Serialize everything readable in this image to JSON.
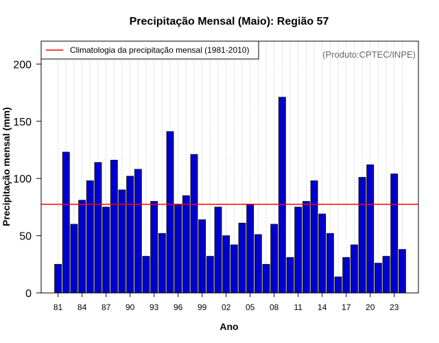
{
  "chart_data": {
    "type": "bar",
    "title": "Precipitação Mensal (Maio): Região 57",
    "xlabel": "Ano",
    "ylabel": "Precipitação mensal (mm)",
    "ylim": [
      0,
      220
    ],
    "yticks": [
      0,
      50,
      100,
      150,
      200
    ],
    "x_tick_labels": [
      "81",
      "84",
      "87",
      "90",
      "93",
      "96",
      "99",
      "02",
      "05",
      "08",
      "11",
      "14",
      "17",
      "20",
      "23"
    ],
    "categories": [
      "1981",
      "1982",
      "1983",
      "1984",
      "1985",
      "1986",
      "1987",
      "1988",
      "1989",
      "1990",
      "1991",
      "1992",
      "1993",
      "1994",
      "1995",
      "1996",
      "1997",
      "1998",
      "1999",
      "2000",
      "2001",
      "2002",
      "2003",
      "2004",
      "2005",
      "2006",
      "2007",
      "2008",
      "2009",
      "2010",
      "2011",
      "2012",
      "2013",
      "2014",
      "2015",
      "2016",
      "2017",
      "2018",
      "2019",
      "2020",
      "2021",
      "2022",
      "2023",
      "2024"
    ],
    "values": [
      25,
      123,
      60,
      81,
      98,
      114,
      75,
      116,
      90,
      102,
      108,
      32,
      80,
      52,
      141,
      77,
      85,
      121,
      64,
      32,
      75,
      50,
      42,
      61,
      77,
      51,
      25,
      60,
      171,
      31,
      75,
      80,
      98,
      69,
      52,
      14,
      31,
      42,
      101,
      112,
      26,
      32,
      104,
      38
    ],
    "bar_color": "#0000CD",
    "grid": true,
    "legend": {
      "position": "top-left",
      "entries": [
        {
          "label": "Climatologia da precipitação mensal (1981-2010)",
          "color": "#FF0000"
        }
      ]
    },
    "climatology_value": 77.5,
    "annotation": "(Produto:CPTEC/INPE)"
  }
}
